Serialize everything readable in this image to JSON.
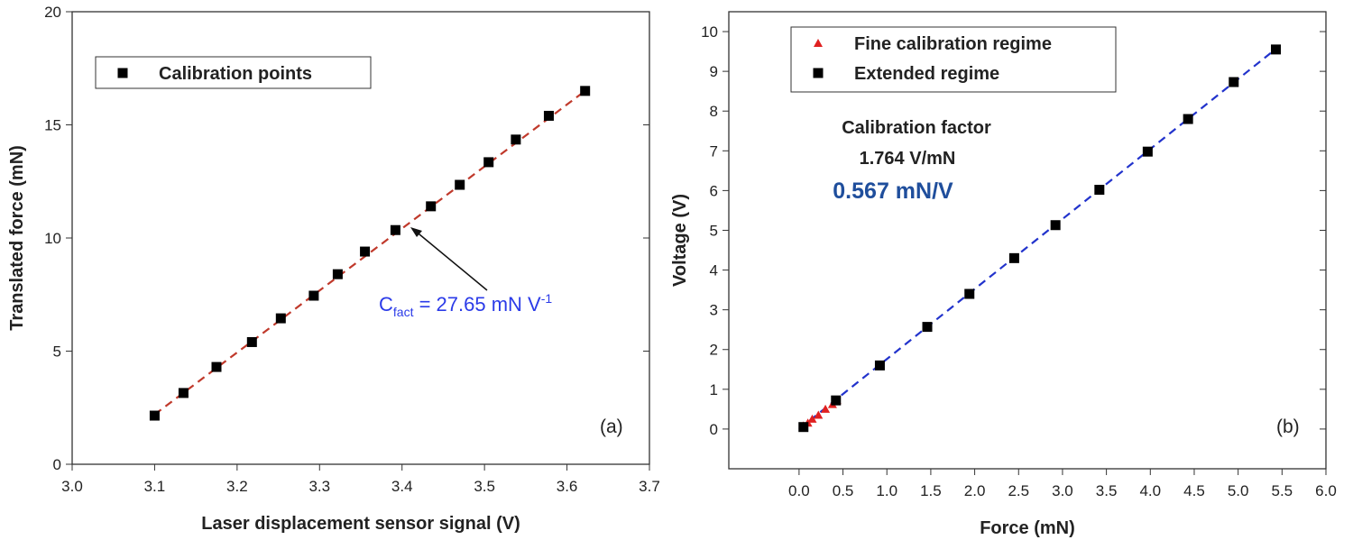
{
  "chart_data": [
    {
      "type": "scatter",
      "xlabel": "Laser displacement sensor signal (V)",
      "ylabel": "Translated force (mN)",
      "panel_label": "(a)",
      "xlim": [
        3.0,
        3.7
      ],
      "ylim": [
        0,
        20
      ],
      "xticks": [
        {
          "value": 3.0,
          "label": "3.0"
        },
        {
          "value": 3.1,
          "label": "3.1"
        },
        {
          "value": 3.2,
          "label": "3.2"
        },
        {
          "value": 3.3,
          "label": "3.3"
        },
        {
          "value": 3.4,
          "label": "3.4"
        },
        {
          "value": 3.5,
          "label": "3.5"
        },
        {
          "value": 3.6,
          "label": "3.6"
        },
        {
          "value": 3.7,
          "label": "3.7"
        }
      ],
      "yticks": [
        0,
        5,
        10,
        15,
        20
      ],
      "series": [
        {
          "name": "Calibration points",
          "color": "#000000",
          "marker": "square",
          "x": [
            3.1,
            3.135,
            3.175,
            3.218,
            3.253,
            3.293,
            3.322,
            3.355,
            3.392,
            3.435,
            3.47,
            3.505,
            3.538,
            3.578,
            3.622
          ],
          "values": [
            2.15,
            3.15,
            4.3,
            5.4,
            6.45,
            7.45,
            8.4,
            9.4,
            10.35,
            11.4,
            12.35,
            13.35,
            14.35,
            15.4,
            16.5
          ]
        }
      ],
      "fit": {
        "color": "#c0392b",
        "x": [
          3.1,
          3.622
        ],
        "values": [
          2.2,
          16.5
        ]
      },
      "annotation": {
        "text": "C",
        "subscript": "fact",
        "rest": " = 27.65 mN V",
        "superscript": "-1",
        "color": "#2b3be8"
      }
    },
    {
      "type": "scatter",
      "xlabel": "Force (mN)",
      "ylabel": "Voltage (V)",
      "panel_label": "(b)",
      "xlim": [
        -0.8,
        6.0
      ],
      "ylim": [
        -1,
        10.5
      ],
      "xticks": [
        {
          "value": 0,
          "label": "0.0"
        },
        {
          "value": 0.5,
          "label": "0.5"
        },
        {
          "value": 1,
          "label": "1.0"
        },
        {
          "value": 1.5,
          "label": "1.5"
        },
        {
          "value": 2,
          "label": "2.0"
        },
        {
          "value": 2.5,
          "label": "2.5"
        },
        {
          "value": 3,
          "label": "3.0"
        },
        {
          "value": 3.5,
          "label": "3.5"
        },
        {
          "value": 4,
          "label": "4.0"
        },
        {
          "value": 4.5,
          "label": "4.5"
        },
        {
          "value": 5,
          "label": "5.0"
        },
        {
          "value": 5.5,
          "label": "5.5"
        },
        {
          "value": 6,
          "label": "6.0"
        }
      ],
      "yticks": [
        0,
        1,
        2,
        3,
        4,
        5,
        6,
        7,
        8,
        9,
        10
      ],
      "series": [
        {
          "name": "Fine calibration regime",
          "color": "#e02020",
          "marker": "triangle",
          "x": [
            0.05,
            0.1,
            0.15,
            0.22,
            0.3,
            0.38,
            0.43
          ],
          "values": [
            0.08,
            0.15,
            0.25,
            0.35,
            0.5,
            0.62,
            0.72
          ]
        },
        {
          "name": "Extended regime",
          "color": "#000000",
          "marker": "square",
          "x": [
            0.05,
            0.42,
            0.92,
            1.46,
            1.94,
            2.45,
            2.92,
            3.42,
            3.97,
            4.43,
            4.95,
            5.43
          ],
          "values": [
            0.05,
            0.72,
            1.6,
            2.57,
            3.4,
            4.3,
            5.13,
            6.02,
            6.98,
            7.8,
            8.73,
            9.55
          ]
        }
      ],
      "fit": {
        "color": "#2233cc",
        "x": [
          0,
          5.45
        ],
        "values": [
          0,
          9.6
        ]
      },
      "notes": [
        "Calibration factor",
        "1.764 V/mN",
        "0.567 mN/V"
      ]
    }
  ]
}
